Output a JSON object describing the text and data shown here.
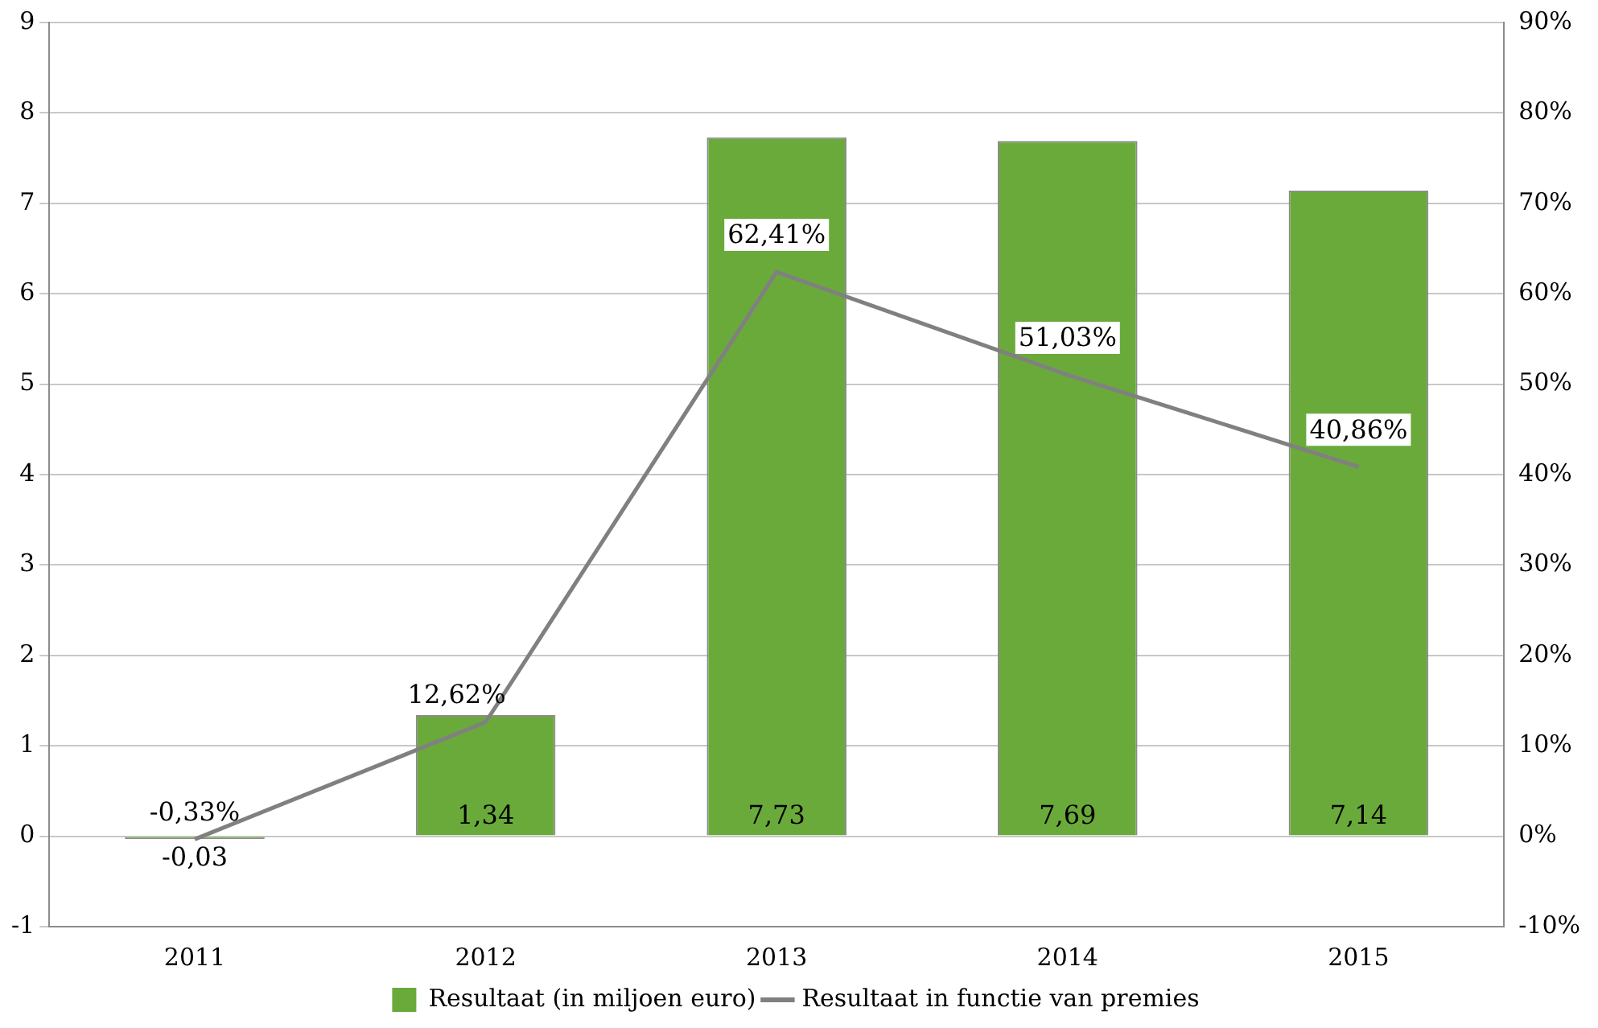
{
  "chart_data": {
    "type": "bar",
    "categories": [
      "2011",
      "2012",
      "2013",
      "2014",
      "2015"
    ],
    "series": [
      {
        "name": "Resultaat (in miljoen euro)",
        "color": "#6aaa3a",
        "values": [
          -0.03,
          1.34,
          7.73,
          7.69,
          7.14
        ],
        "value_labels": [
          "-0,03",
          "1,34",
          "7,73",
          "7,69",
          "7,14"
        ]
      },
      {
        "name": "Resultaat in functie van premies",
        "type": "line",
        "axis": "y2",
        "color": "#808080",
        "values": [
          -0.33,
          12.62,
          62.41,
          51.03,
          40.86
        ],
        "value_labels": [
          "-0,33%",
          "12,62%",
          "62,41%",
          "51,03%",
          "40,86%"
        ]
      }
    ],
    "ylim": [
      -1,
      9
    ],
    "yticks": [
      -1,
      0,
      1,
      2,
      3,
      4,
      5,
      6,
      7,
      8,
      9
    ],
    "y2lim": [
      -10,
      90
    ],
    "y2ticks": [
      {
        "value": -10,
        "label": "-10%"
      },
      {
        "value": 0,
        "label": "0%"
      },
      {
        "value": 10,
        "label": "10%"
      },
      {
        "value": 20,
        "label": "20%"
      },
      {
        "value": 30,
        "label": "30%"
      },
      {
        "value": 40,
        "label": "40%"
      },
      {
        "value": 50,
        "label": "50%"
      },
      {
        "value": 60,
        "label": "60%"
      },
      {
        "value": 70,
        "label": "70%"
      },
      {
        "value": 80,
        "label": "80%"
      },
      {
        "value": 90,
        "label": "90%"
      }
    ],
    "grid": "y",
    "legend": "bottom",
    "marker": "none",
    "line_style": "solid"
  }
}
